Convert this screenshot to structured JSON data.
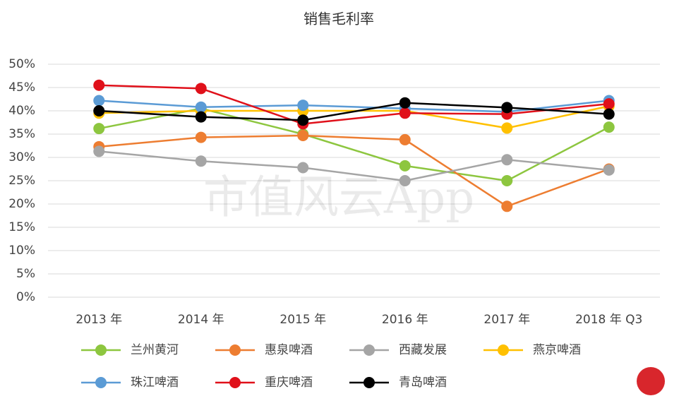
{
  "chart_data": {
    "type": "line",
    "title": "销售毛利率",
    "watermark": "市值风云App",
    "categories": [
      "2013 年",
      "2014 年",
      "2015 年",
      "2016 年",
      "2017 年",
      "2018 年 Q3"
    ],
    "ylim": [
      0,
      50
    ],
    "yticks": [
      {
        "value": 0,
        "label": "0%"
      },
      {
        "value": 5,
        "label": "5%"
      },
      {
        "value": 10,
        "label": "10%"
      },
      {
        "value": 15,
        "label": "15%"
      },
      {
        "value": 20,
        "label": "20%"
      },
      {
        "value": 25,
        "label": "25%"
      },
      {
        "value": 30,
        "label": "30%"
      },
      {
        "value": 35,
        "label": "35%"
      },
      {
        "value": 40,
        "label": "40%"
      },
      {
        "value": 45,
        "label": "45%"
      },
      {
        "value": 50,
        "label": "50%"
      }
    ],
    "grid": true,
    "series": [
      {
        "name": "兰州黄河",
        "color": "#8dc63f",
        "values": [
          36.2,
          40.5,
          35,
          28.2,
          25,
          36.5
        ]
      },
      {
        "name": "惠泉啤酒",
        "color": "#ed7d31",
        "values": [
          32.3,
          34.3,
          34.7,
          33.8,
          19.5,
          27.5
        ]
      },
      {
        "name": "西藏发展",
        "color": "#a5a5a5",
        "values": [
          31.3,
          29.2,
          27.8,
          25,
          29.5,
          27.3
        ]
      },
      {
        "name": "燕京啤酒",
        "color": "#ffc000",
        "values": [
          39.5,
          40,
          40,
          40,
          36.3,
          41
        ]
      },
      {
        "name": "珠江啤酒",
        "color": "#5b9bd5",
        "values": [
          42.2,
          40.8,
          41.2,
          40.5,
          39.8,
          42.2
        ]
      },
      {
        "name": "重庆啤酒",
        "color": "#e0101a",
        "values": [
          45.5,
          44.8,
          37.2,
          39.5,
          39.3,
          41.5
        ]
      },
      {
        "name": "青岛啤酒",
        "color": "#000000",
        "values": [
          40,
          38.7,
          38,
          41.7,
          40.7,
          39.3
        ]
      }
    ]
  }
}
